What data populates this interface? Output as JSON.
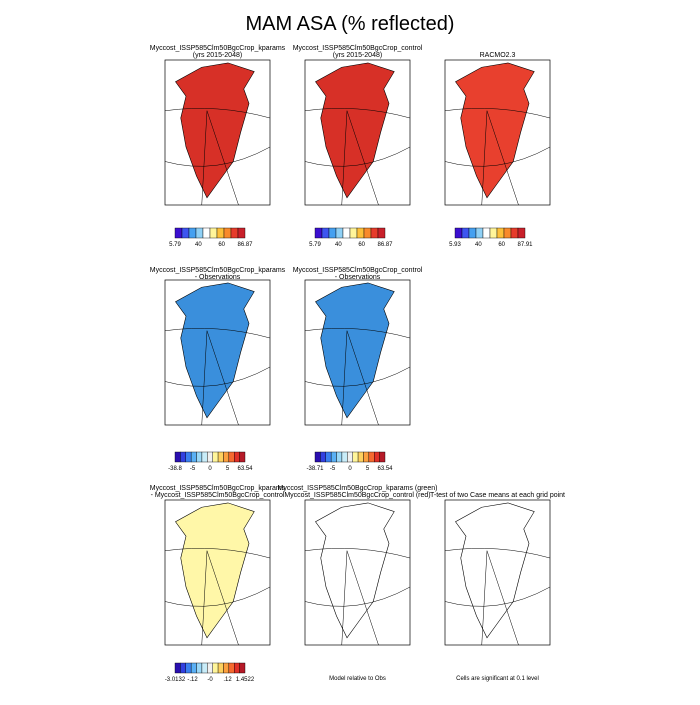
{
  "title": "MAM ASA (% reflected)",
  "panels": [
    {
      "title": "Myccost_ISSP585Clm50BgcCrop_kparams",
      "subtitle": "(yrs 2015-2048)",
      "colorbar": [
        "5.79",
        "40",
        "60",
        "86.87"
      ]
    },
    {
      "title": "Myccost_ISSP585Clm50BgcCrop_control",
      "subtitle": "(yrs 2015-2048)",
      "colorbar": [
        "5.79",
        "40",
        "60",
        "86.87"
      ]
    },
    {
      "title": "RACMO2.3",
      "colorbar": [
        "5.93",
        "40",
        "60",
        "87.91"
      ]
    },
    {
      "title": "Myccost_ISSP585Clm50BgcCrop_kparams",
      "subtitle": "- Observations",
      "colorbar": [
        "-38.8",
        "-5",
        "0",
        "5",
        "63.54"
      ]
    },
    {
      "title": "Myccost_ISSP585Clm50BgcCrop_control",
      "subtitle": "- Observations",
      "colorbar": [
        "-38.71",
        "-5",
        "0",
        "5",
        "63.54"
      ]
    },
    {
      "title": "Myccost_ISSP585Clm50BgcCrop_kparams",
      "subtitle": "- Myccost_ISSP585Clm50BgcCrop_control",
      "colorbar": [
        "-3.0132",
        "-.12",
        "-0",
        ".12",
        "1.4522"
      ]
    },
    {
      "title": "Myccost_ISSP585Clm50BgcCrop_kparams (green)",
      "subtitle": "Myccost_ISSP585Clm50BgcCrop_control (red)",
      "footer": "Model relative to Obs"
    },
    {
      "title": "T-test of two Case means at each grid point",
      "footer": "Cells are significant at 0.1 level"
    }
  ]
}
